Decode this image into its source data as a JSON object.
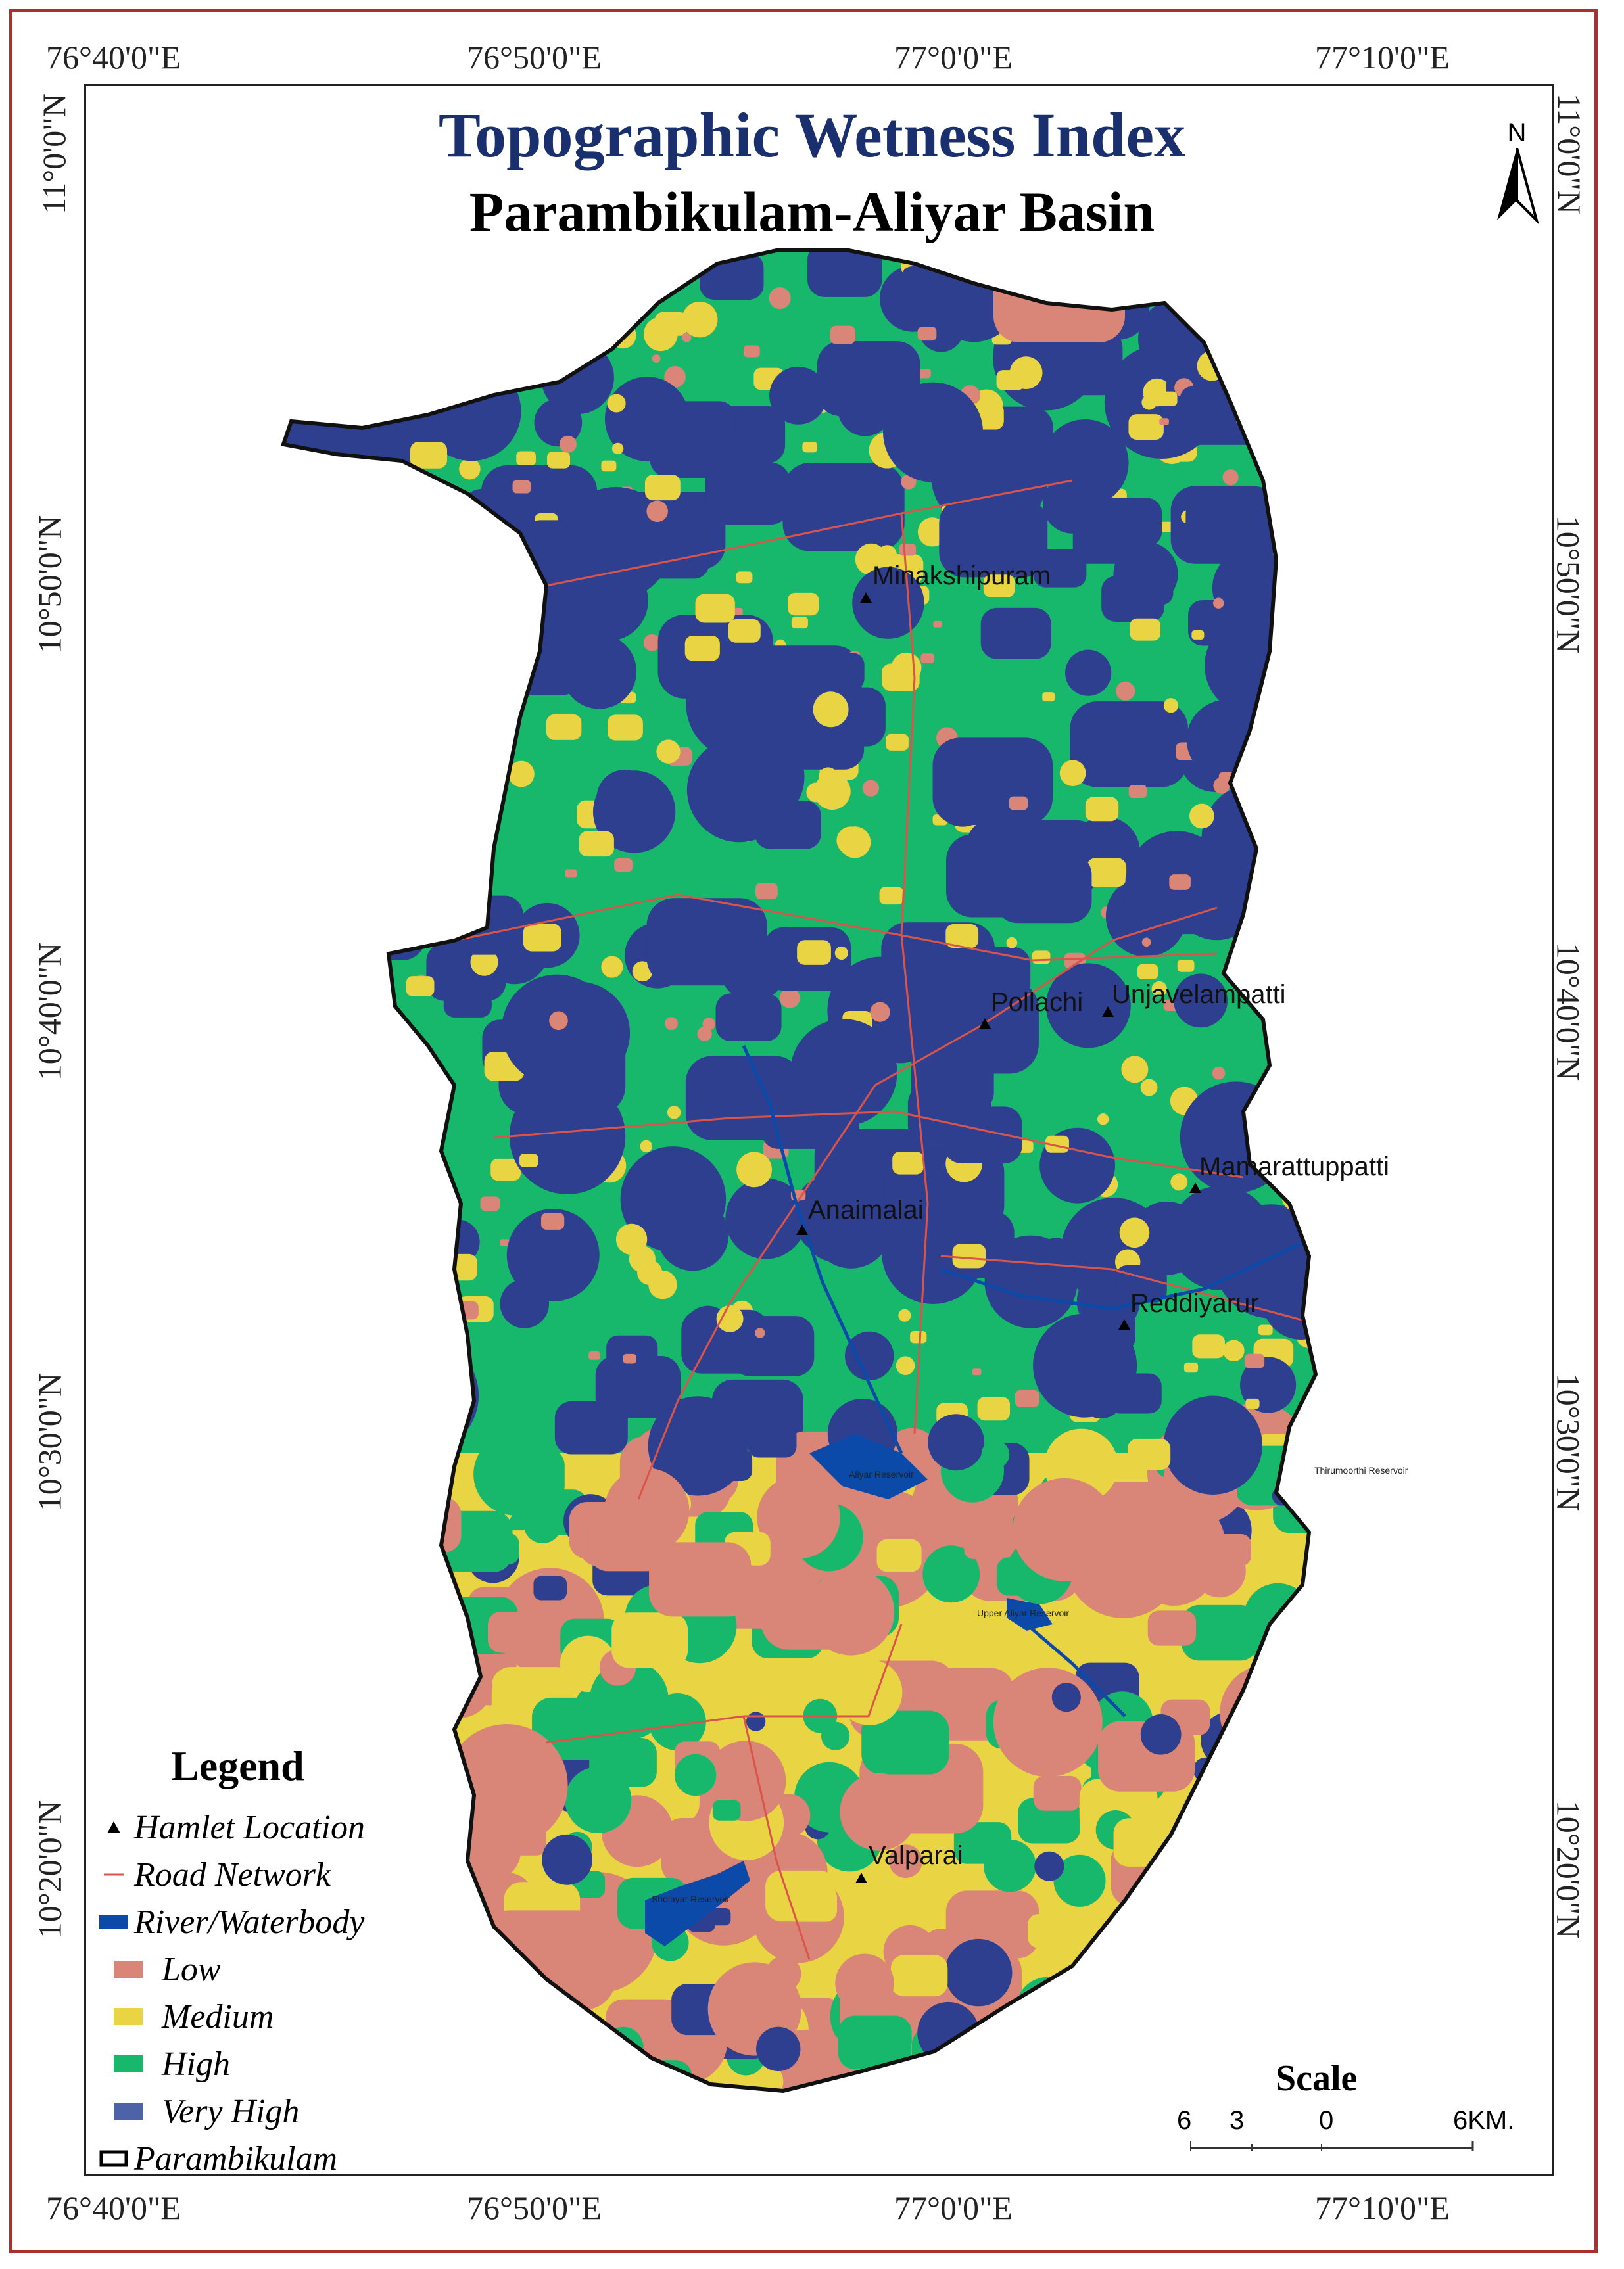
{
  "map": {
    "title": "Topographic Wetness Index",
    "subtitle": "Parambikulam-Aliyar Basin",
    "north_label": "N",
    "coordinates": {
      "top": [
        "76°40'0\"E",
        "76°50'0\"E",
        "77°0'0\"E",
        "77°10'0\"E"
      ],
      "bottom": [
        "76°40'0\"E",
        "76°50'0\"E",
        "77°0'0\"E",
        "77°10'0\"E"
      ],
      "left": [
        "11°0'0\"N",
        "10°50'0\"N",
        "10°40'0\"N",
        "10°30'0\"N",
        "10°20'0\"N"
      ],
      "right": [
        "11°0'0\"N",
        "10°50'0\"N",
        "10°40'0\"N",
        "10°30'0\"N",
        "10°20'0\"N"
      ]
    },
    "places": [
      {
        "name": "Minakshipuram"
      },
      {
        "name": "Pollachi"
      },
      {
        "name": "Unjavelampatti"
      },
      {
        "name": "Mamarattuppatti"
      },
      {
        "name": "Anaimalai"
      },
      {
        "name": "Reddiyarur"
      },
      {
        "name": "Valparai"
      }
    ],
    "reservoirs": [
      "Aliyar Reservoir",
      "Upper Aliyar Reservoir",
      "Thirumoorthi Reservoir",
      "Sholayar Reservoir"
    ],
    "classes": {
      "low": "#d98577",
      "medium": "#e9d444",
      "high": "#17b86b",
      "very_high": "#2e3f8f",
      "water": "#0b4aa8",
      "road": "#d9544a"
    }
  },
  "legend": {
    "title": "Legend",
    "items": [
      {
        "label": "Hamlet Location",
        "icon": "triangle-icon"
      },
      {
        "label": "Road Network",
        "icon": "road-line-icon"
      },
      {
        "label": "River/Waterbody",
        "icon": "water-icon"
      },
      {
        "label": "Low",
        "icon": "swatch-low"
      },
      {
        "label": "Medium",
        "icon": "swatch-medium"
      },
      {
        "label": "High",
        "icon": "swatch-high"
      },
      {
        "label": "Very High",
        "icon": "swatch-very-high"
      },
      {
        "label": "Parambikulam",
        "icon": "boundary-icon"
      }
    ]
  },
  "scale": {
    "title": "Scale",
    "ticks": [
      "6",
      "3",
      "0",
      "6KM."
    ]
  }
}
